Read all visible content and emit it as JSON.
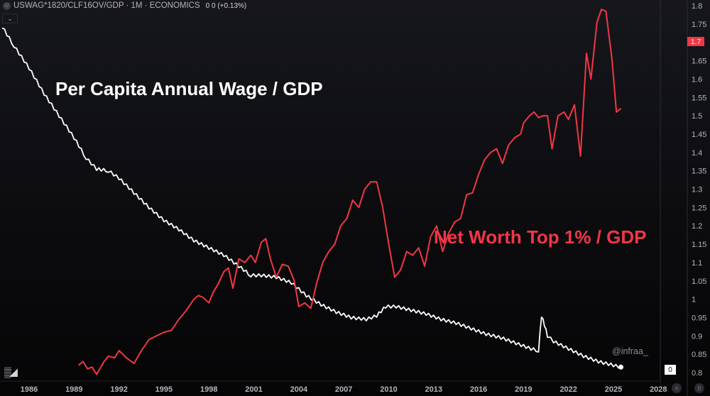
{
  "header": {
    "symbol_badge": "U",
    "title": "USWAG*1820/CLF16OV/GDP · 1M · ECONOMICS",
    "values": "0  0 (+0.13%)",
    "collapse_icon": "chevron-down"
  },
  "annotations": {
    "white_label": "Per Capita Annual Wage / GDP",
    "red_label": "Net Worth Top 1% / GDP",
    "watermark": "@infraa_"
  },
  "price_tag": {
    "value": "1.7",
    "color": "#f23645"
  },
  "zero_box": "0",
  "logo": "TV",
  "axis_buttons": {
    "a": "A",
    "b": "B"
  },
  "chart_data": {
    "type": "line",
    "title": "USWAG*1820/CLF16OV/GDP · 1M · ECONOMICS",
    "xlabel": "",
    "ylabel": "",
    "ylim": [
      0.8,
      1.8
    ],
    "xlim": [
      1984.1,
      2028.5
    ],
    "x_ticks": [
      "1986",
      "1989",
      "1992",
      "1995",
      "1998",
      "2001",
      "2004",
      "2007",
      "2010",
      "2013",
      "2016",
      "2019",
      "2022",
      "2025",
      "2028"
    ],
    "y_ticks": [
      "1.8",
      "1.75",
      "1.7",
      "1.65",
      "1.6",
      "1.55",
      "1.5",
      "1.45",
      "1.4",
      "1.35",
      "1.3",
      "1.25",
      "1.2",
      "1.15",
      "1.1",
      "1.05",
      "1",
      "0.95",
      "0.9",
      "0.85",
      "0.8"
    ],
    "grid": false,
    "legend": "none",
    "series": [
      {
        "name": "Per Capita Annual Wage / GDP",
        "color": "#ffffff",
        "x": [
          1984.2,
          1985.0,
          1986.0,
          1987.0,
          1988.0,
          1989.0,
          1989.8,
          1990.5,
          1991.3,
          1992.0,
          1993.0,
          1994.0,
          1995.0,
          1996.0,
          1997.0,
          1998.0,
          1999.0,
          2000.0,
          2000.8,
          2001.5,
          2002.5,
          2003.5,
          2004.5,
          2005.5,
          2006.5,
          2007.5,
          2008.5,
          2009.2,
          2009.8,
          2010.5,
          2011.5,
          2012.5,
          2013.5,
          2014.5,
          2015.5,
          2016.5,
          2017.5,
          2018.5,
          2019.5,
          2020.0,
          2020.2,
          2020.4,
          2020.6,
          2021.0,
          2022.0,
          2023.0,
          2024.0,
          2025.0,
          2025.5
        ],
        "values": [
          1.743,
          1.69,
          1.63,
          1.56,
          1.5,
          1.44,
          1.385,
          1.355,
          1.35,
          1.33,
          1.29,
          1.25,
          1.215,
          1.19,
          1.16,
          1.14,
          1.12,
          1.09,
          1.065,
          1.065,
          1.06,
          1.045,
          1.01,
          0.985,
          0.965,
          0.95,
          0.945,
          0.955,
          0.98,
          0.98,
          0.97,
          0.96,
          0.945,
          0.935,
          0.92,
          0.905,
          0.895,
          0.88,
          0.865,
          0.86,
          0.955,
          0.93,
          0.9,
          0.885,
          0.865,
          0.845,
          0.83,
          0.82,
          0.815
        ]
      },
      {
        "name": "Net Worth Top 1% / GDP",
        "color": "#f23645",
        "x": [
          1989.3,
          1989.6,
          1989.9,
          1990.2,
          1990.5,
          1991.0,
          1991.3,
          1991.7,
          1992.0,
          1992.5,
          1993.0,
          1993.5,
          1994.0,
          1994.5,
          1995.0,
          1995.5,
          1996.0,
          1996.5,
          1997.0,
          1997.3,
          1997.6,
          1998.0,
          1998.3,
          1998.6,
          1999.0,
          1999.3,
          1999.6,
          2000.0,
          2000.4,
          2000.8,
          2001.1,
          2001.5,
          2001.8,
          2002.1,
          2002.5,
          2002.9,
          2003.3,
          2003.7,
          2004.0,
          2004.4,
          2004.8,
          2005.2,
          2005.6,
          2006.0,
          2006.4,
          2006.8,
          2007.2,
          2007.6,
          2008.0,
          2008.4,
          2008.8,
          2009.2,
          2009.6,
          2010.0,
          2010.4,
          2010.8,
          2011.2,
          2011.6,
          2012.0,
          2012.4,
          2012.8,
          2013.2,
          2013.6,
          2014.0,
          2014.4,
          2014.8,
          2015.2,
          2015.6,
          2016.0,
          2016.4,
          2016.8,
          2017.2,
          2017.6,
          2018.0,
          2018.4,
          2018.8,
          2019.0,
          2019.4,
          2019.7,
          2020.0,
          2020.3,
          2020.6,
          2020.9,
          2021.3,
          2021.7,
          2022.0,
          2022.4,
          2022.8,
          2023.2,
          2023.5,
          2023.9,
          2024.2,
          2024.5,
          2024.9,
          2025.2,
          2025.5
        ],
        "values": [
          0.82,
          0.83,
          0.81,
          0.815,
          0.795,
          0.83,
          0.845,
          0.84,
          0.86,
          0.84,
          0.825,
          0.86,
          0.89,
          0.9,
          0.91,
          0.915,
          0.945,
          0.97,
          1.0,
          1.01,
          1.005,
          0.99,
          1.02,
          1.04,
          1.075,
          1.085,
          1.03,
          1.11,
          1.1,
          1.12,
          1.1,
          1.155,
          1.165,
          1.11,
          1.06,
          1.095,
          1.09,
          1.05,
          0.98,
          0.99,
          0.975,
          1.045,
          1.1,
          1.13,
          1.15,
          1.2,
          1.22,
          1.27,
          1.25,
          1.3,
          1.32,
          1.32,
          1.25,
          1.15,
          1.06,
          1.08,
          1.13,
          1.12,
          1.14,
          1.09,
          1.17,
          1.2,
          1.13,
          1.18,
          1.21,
          1.22,
          1.285,
          1.29,
          1.34,
          1.38,
          1.4,
          1.41,
          1.37,
          1.42,
          1.44,
          1.45,
          1.48,
          1.5,
          1.51,
          1.495,
          1.5,
          1.5,
          1.41,
          1.5,
          1.51,
          1.49,
          1.53,
          1.39,
          1.67,
          1.6,
          1.755,
          1.79,
          1.785,
          1.655,
          1.51,
          1.52
        ]
      }
    ]
  }
}
